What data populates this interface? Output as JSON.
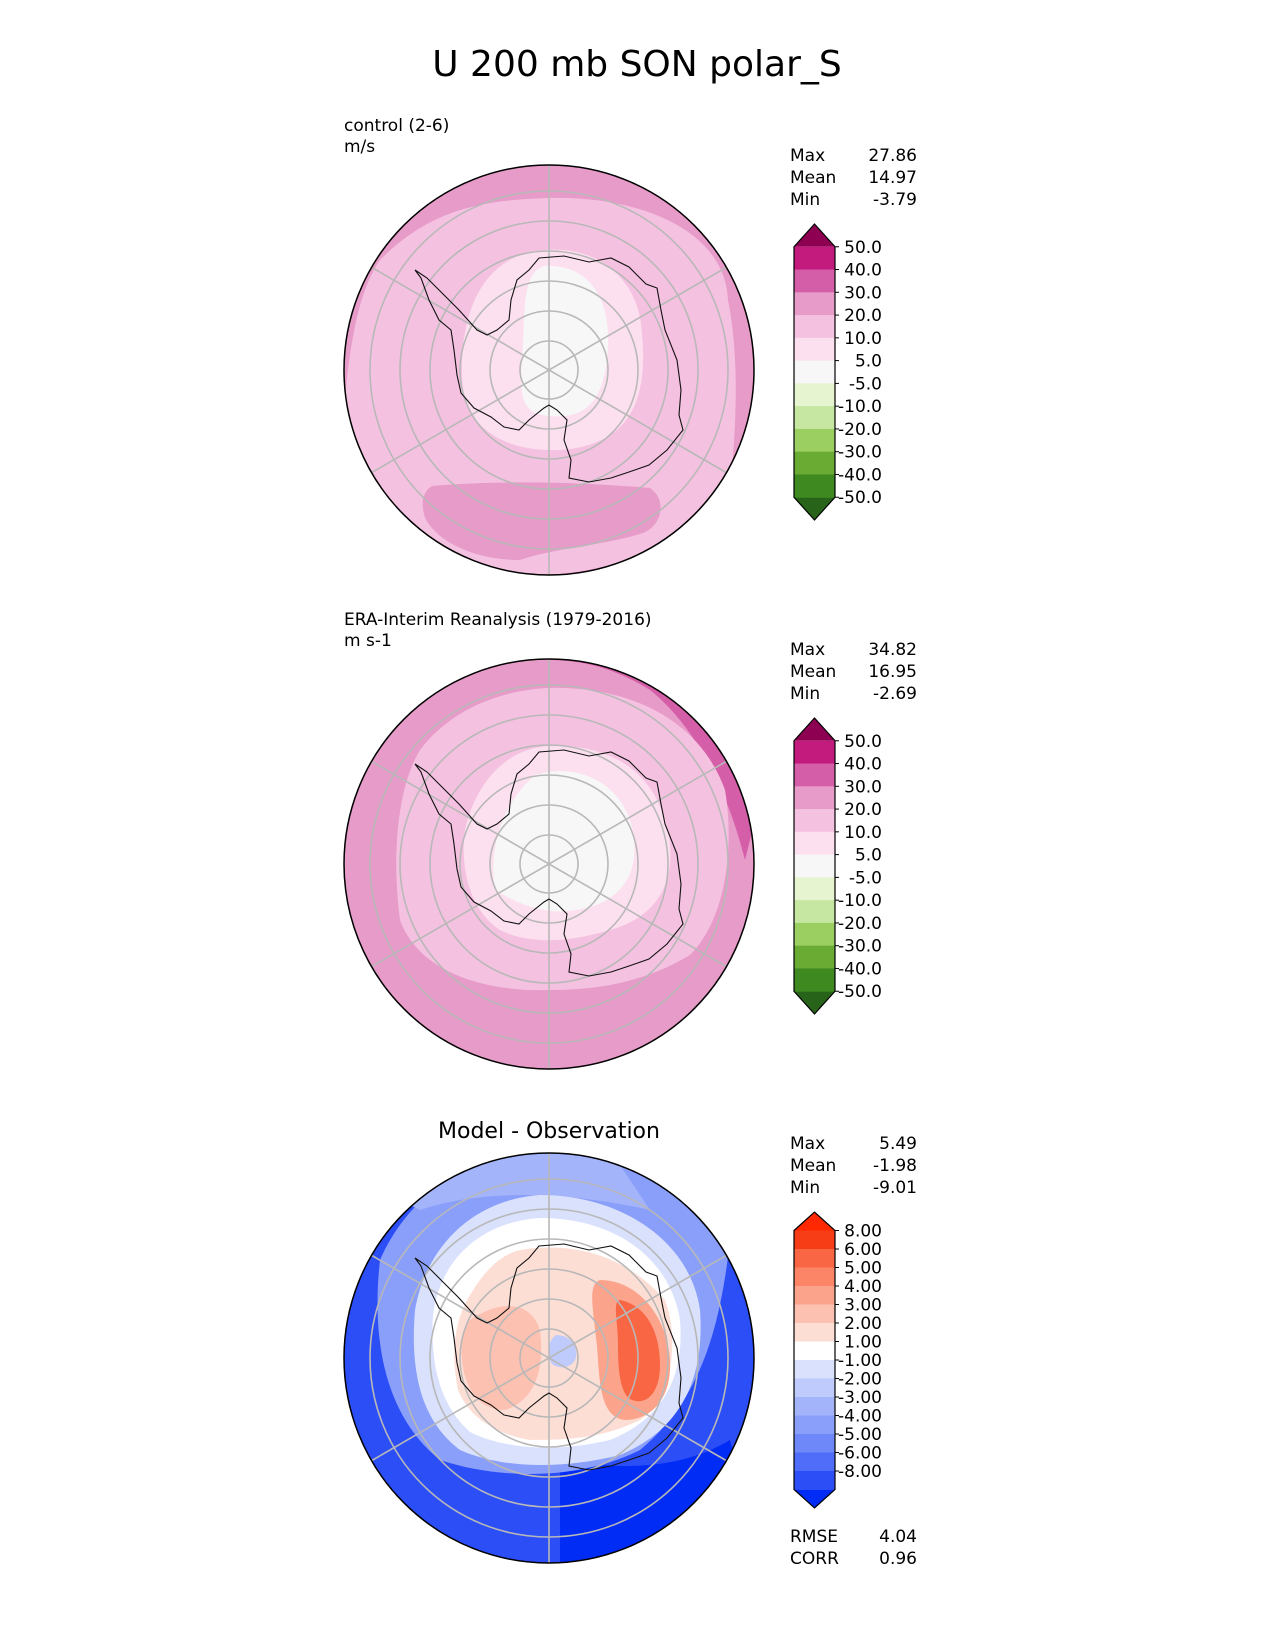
{
  "title": "U 200 mb SON polar_S",
  "colors": {
    "pos": [
      "#fde0ef",
      "#f4c2e0",
      "#e79bc9",
      "#d45fa8",
      "#c21b7d",
      "#8e0152"
    ],
    "neutral": "#f7f7f7",
    "neg": [
      "#e6f5d0",
      "#c6e7a1",
      "#9bcf62",
      "#6aab34",
      "#3e8a21",
      "#276419"
    ],
    "diff_pos": [
      "#fdded5",
      "#fcc1b1",
      "#fca38b",
      "#fb8566",
      "#f96643",
      "#f73d16",
      "#ff2800"
    ],
    "diff_neg": [
      "#dae1fd",
      "#bfcbfc",
      "#a3b4fb",
      "#8a9ffa",
      "#6e88f9",
      "#4f6df8",
      "#2c4ef7",
      "#002cf6"
    ]
  },
  "chart_data": [
    {
      "type": "heatmap",
      "panel": "test",
      "title_lines": [
        "control (2-6)",
        "m/s"
      ],
      "projection": "south polar stereographic",
      "stats": [
        {
          "label": "Max",
          "value": "27.86"
        },
        {
          "label": "Mean",
          "value": "14.97"
        },
        {
          "label": "Min",
          "value": "-3.79"
        }
      ],
      "colorbar": {
        "levels": [
          "50.0",
          "40.0",
          "30.0",
          "20.0",
          "10.0",
          "5.0",
          "-5.0",
          "-10.0",
          "-20.0",
          "-30.0",
          "-40.0",
          "-50.0"
        ],
        "extend": "both"
      }
    },
    {
      "type": "heatmap",
      "panel": "reference",
      "title_lines": [
        "ERA-Interim Reanalysis (1979-2016)",
        "m s-1"
      ],
      "projection": "south polar stereographic",
      "stats": [
        {
          "label": "Max",
          "value": "34.82"
        },
        {
          "label": "Mean",
          "value": "16.95"
        },
        {
          "label": "Min",
          "value": "-2.69"
        }
      ],
      "colorbar": {
        "levels": [
          "50.0",
          "40.0",
          "30.0",
          "20.0",
          "10.0",
          "5.0",
          "-5.0",
          "-10.0",
          "-20.0",
          "-30.0",
          "-40.0",
          "-50.0"
        ],
        "extend": "both"
      }
    },
    {
      "type": "heatmap",
      "panel": "difference",
      "title_lines": [
        "Model - Observation"
      ],
      "projection": "south polar stereographic",
      "stats": [
        {
          "label": "Max",
          "value": "5.49"
        },
        {
          "label": "Mean",
          "value": "-1.98"
        },
        {
          "label": "Min",
          "value": "-9.01"
        }
      ],
      "colorbar": {
        "levels": [
          "8.00",
          "6.00",
          "5.00",
          "4.00",
          "3.00",
          "2.00",
          "1.00",
          "-1.00",
          "-2.00",
          "-3.00",
          "-4.00",
          "-5.00",
          "-6.00",
          "-8.00"
        ],
        "extend": "both"
      },
      "metrics": [
        {
          "label": "RMSE",
          "value": "4.04"
        },
        {
          "label": "CORR",
          "value": "0.96"
        }
      ]
    }
  ]
}
